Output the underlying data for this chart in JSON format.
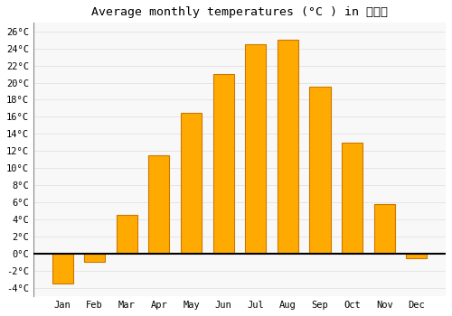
{
  "months": [
    "Jan",
    "Feb",
    "Mar",
    "Apr",
    "May",
    "Jun",
    "Jul",
    "Aug",
    "Sep",
    "Oct",
    "Nov",
    "Dec"
  ],
  "temperatures": [
    -3.5,
    -1.0,
    4.5,
    11.5,
    16.5,
    21.0,
    24.5,
    25.0,
    19.5,
    13.0,
    5.8,
    -0.5
  ],
  "bar_color": "#FFAA00",
  "bar_edge_color": "#CC7700",
  "background_color": "#FFFFFF",
  "plot_bg_color": "#F8F8F8",
  "grid_color": "#DDDDDD",
  "title": "Average monthly temperatures (°C ) in 옥천군",
  "title_fontsize": 9.5,
  "tick_fontsize": 7.5,
  "ylim": [
    -5,
    27
  ],
  "yticks": [
    -4,
    -2,
    0,
    2,
    4,
    6,
    8,
    10,
    12,
    14,
    16,
    18,
    20,
    22,
    24,
    26
  ]
}
